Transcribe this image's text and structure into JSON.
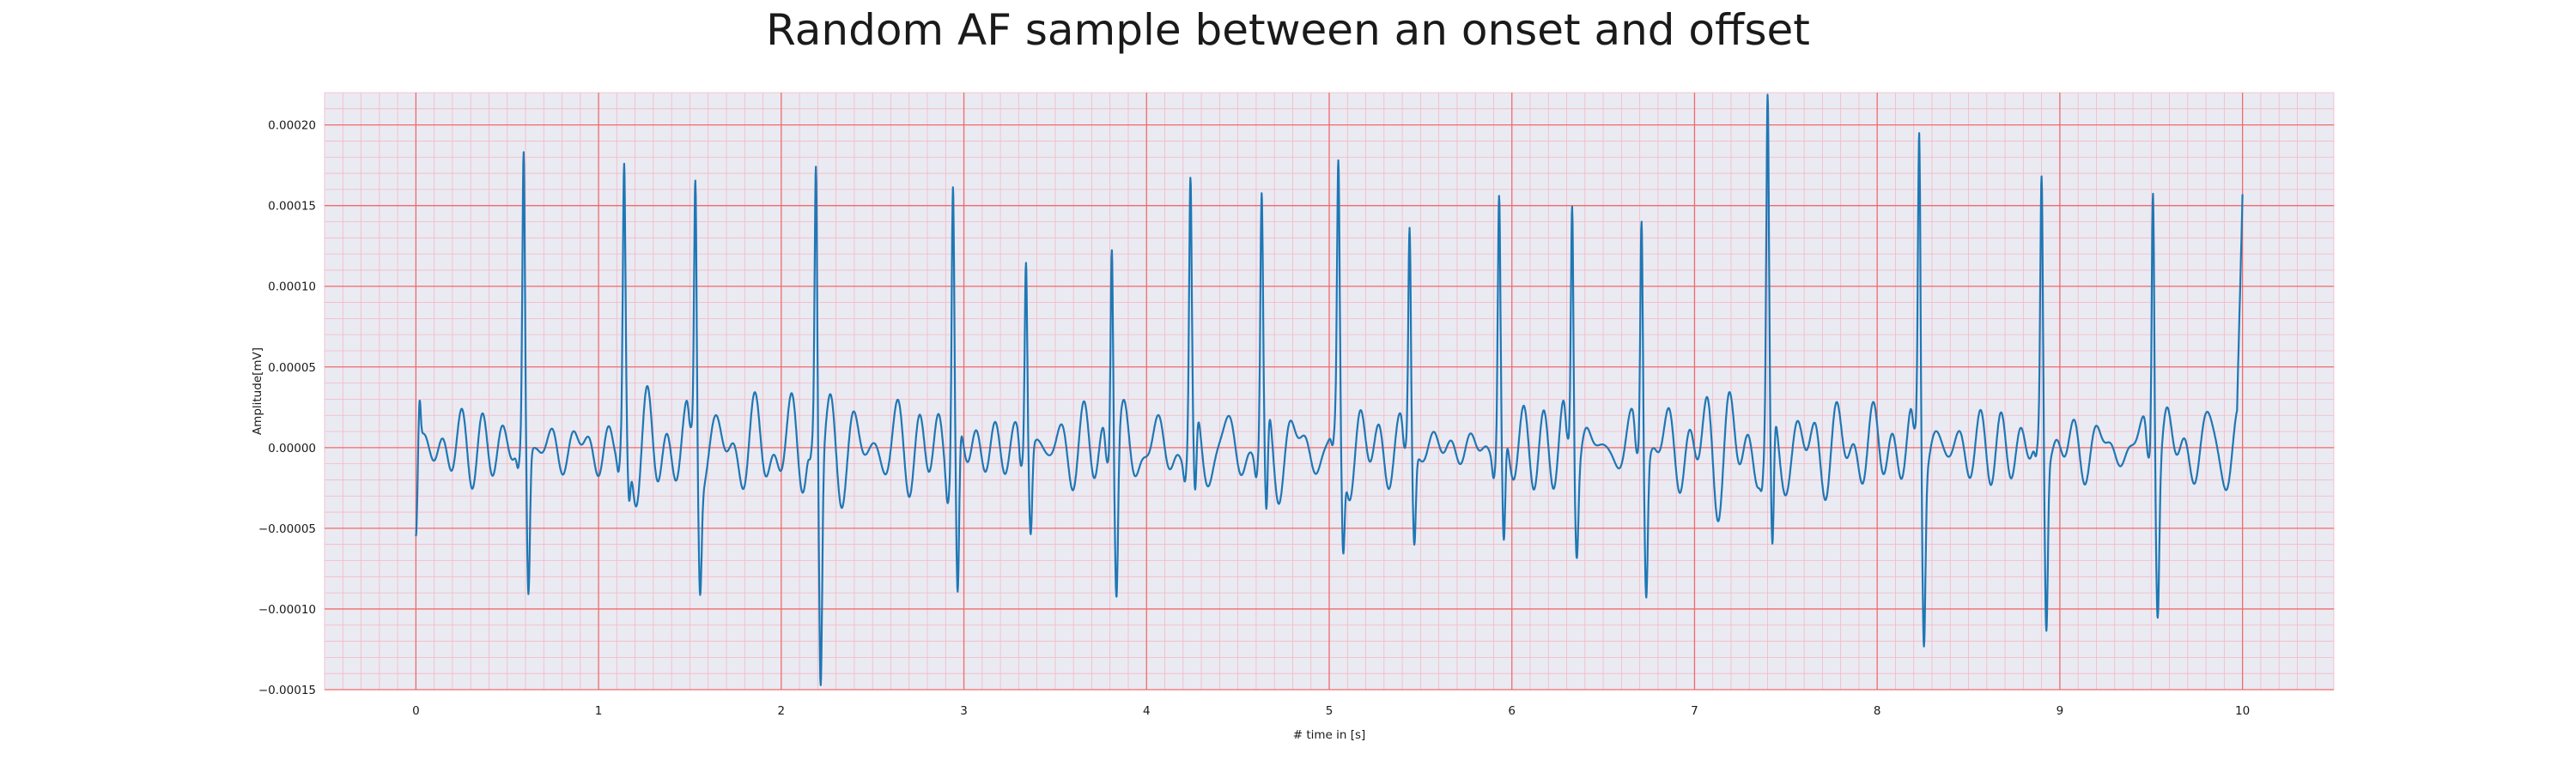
{
  "chart_data": {
    "type": "line",
    "title": "Random AF sample between an onset and offset",
    "xlabel": "# time in [s]",
    "ylabel": "Amplitude[mV]",
    "xlim": [
      -0.5,
      10.5
    ],
    "ylim": [
      -0.00015,
      0.00022
    ],
    "x_ticks": [
      0,
      1,
      2,
      3,
      4,
      5,
      6,
      7,
      8,
      9,
      10
    ],
    "x_tick_labels": [
      "0",
      "1",
      "2",
      "3",
      "4",
      "5",
      "6",
      "7",
      "8",
      "9",
      "10"
    ],
    "y_ticks": [
      -0.00015,
      -0.0001,
      -5e-05,
      0,
      5e-05,
      0.0001,
      0.00015,
      0.0002
    ],
    "y_tick_labels": [
      "−0.00015",
      "−0.00010",
      "−0.00005",
      "0.00000",
      "0.00005",
      "0.00010",
      "0.00015",
      "0.00020"
    ],
    "grid": "major red, minor pink",
    "colors": {
      "line": "#1f77b4",
      "plot_bg": "#eaeaf2",
      "major_grid": "#f06a6a",
      "minor_grid": "#f4b8c4"
    },
    "beats": [
      {
        "t": 0.59,
        "r": 0.000182,
        "s": -9e-05
      },
      {
        "t": 1.14,
        "r": 0.00016,
        "s": -3.8e-05
      },
      {
        "t": 1.53,
        "r": 0.000172,
        "s": -6.5e-05
      },
      {
        "t": 2.19,
        "r": 0.000176,
        "s": -0.000135
      },
      {
        "t": 2.94,
        "r": 0.000169,
        "s": -0.000105
      },
      {
        "t": 3.34,
        "r": 0.000126,
        "s": -5e-05
      },
      {
        "t": 3.81,
        "r": 0.000145,
        "s": -8.3e-05
      },
      {
        "t": 4.24,
        "r": 0.000157,
        "s": -5.3e-05
      },
      {
        "t": 4.63,
        "r": 0.000147,
        "s": -6.8e-05
      },
      {
        "t": 5.05,
        "r": 0.000157,
        "s": -6.5e-05
      },
      {
        "t": 5.44,
        "r": 0.00014,
        "s": -5.5e-05
      },
      {
        "t": 5.93,
        "r": 0.000153,
        "s": -7e-05
      },
      {
        "t": 6.33,
        "r": 0.000168,
        "s": -4.5e-05
      },
      {
        "t": 6.71,
        "r": 0.000157,
        "s": -7.7e-05
      },
      {
        "t": 7.4,
        "r": 0.000198,
        "s": -9e-05
      },
      {
        "t": 8.23,
        "r": 0.000202,
        "s": -0.000102
      },
      {
        "t": 8.9,
        "r": 0.000165,
        "s": -0.000104
      },
      {
        "t": 9.51,
        "r": 0.000184,
        "s": -7.8e-05
      }
    ],
    "start": {
      "t": 0.0,
      "y": -5.5e-05
    },
    "end": {
      "t": 10.0,
      "y": 0.000157
    }
  }
}
